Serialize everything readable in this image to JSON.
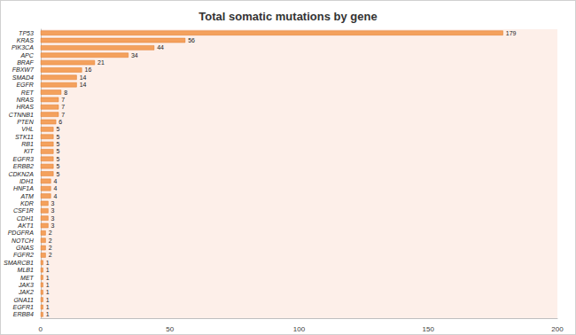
{
  "chart_data": {
    "type": "bar",
    "title": "Total somatic mutations by gene",
    "orientation": "horizontal",
    "categories": [
      "TP53",
      "KRAS",
      "PIK3CA",
      "APC",
      "BRAF",
      "FBXW7",
      "SMAD4",
      "EGFR",
      "RET",
      "NRAS",
      "HRAS",
      "CTNNB1",
      "PTEN",
      "VHL",
      "STK11",
      "RB1",
      "KIT",
      "EGFR3",
      "ERBB2",
      "CDKN2A",
      "IDH1",
      "HNF1A",
      "ATM",
      "KDR",
      "CSF1R",
      "CDH1",
      "AKT1",
      "PDGFRA",
      "NOTCH",
      "GNAS",
      "FGFR2",
      "SMARCB1",
      "MLB1",
      "MET",
      "JAK3",
      "JAK2",
      "GNA11",
      "EGFR1",
      "ERBB4"
    ],
    "values": [
      179,
      56,
      44,
      34,
      21,
      16,
      14,
      14,
      8,
      7,
      7,
      7,
      6,
      5,
      5,
      5,
      5,
      5,
      5,
      5,
      4,
      4,
      4,
      3,
      3,
      3,
      3,
      2,
      2,
      2,
      2,
      1,
      1,
      1,
      1,
      1,
      1,
      1,
      1
    ],
    "color": "#f4a15d",
    "xlim": [
      0,
      200
    ],
    "xticks": [
      0,
      50,
      100,
      150,
      200
    ],
    "grid": false,
    "data_labels": true
  }
}
